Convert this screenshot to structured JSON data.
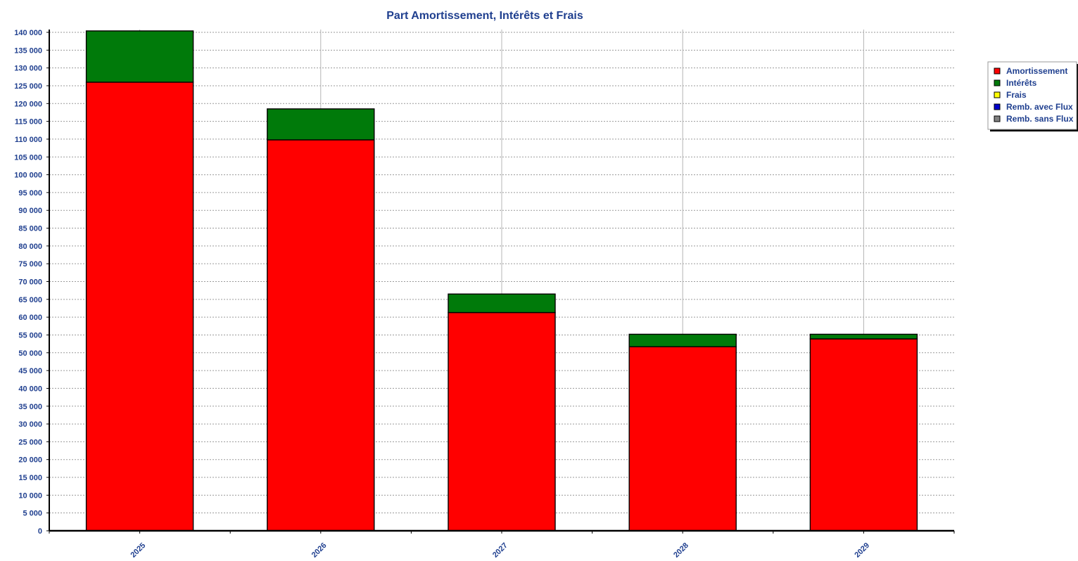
{
  "chart_data": {
    "type": "bar",
    "stacked": true,
    "title": "Part Amortissement, Intérêts et Frais",
    "xlabel": "",
    "ylabel": "",
    "categories": [
      "2025",
      "2026",
      "2027",
      "2028",
      "2029"
    ],
    "series": [
      {
        "name": "Amortissement",
        "color": "#ff0000",
        "values": [
          126000,
          109800,
          61300,
          51700,
          53900
        ]
      },
      {
        "name": "Intérêts",
        "color": "#007a0a",
        "values": [
          14400,
          8700,
          5200,
          3500,
          1300
        ]
      },
      {
        "name": "Frais",
        "color": "#ffff00",
        "values": [
          0,
          0,
          0,
          0,
          0
        ]
      },
      {
        "name": "Remb. avec Flux",
        "color": "#0000cc",
        "values": [
          0,
          0,
          0,
          0,
          0
        ]
      },
      {
        "name": "Remb. sans Flux",
        "color": "#808080",
        "values": [
          0,
          0,
          0,
          0,
          0
        ]
      }
    ],
    "ylim": [
      0,
      140000
    ],
    "yticks": [
      0,
      5000,
      10000,
      15000,
      20000,
      25000,
      30000,
      35000,
      40000,
      45000,
      50000,
      55000,
      60000,
      65000,
      70000,
      75000,
      80000,
      85000,
      90000,
      95000,
      100000,
      105000,
      110000,
      115000,
      120000,
      125000,
      130000,
      135000,
      140000
    ],
    "ytick_labels": [
      "0",
      "5 000",
      "10 000",
      "15 000",
      "20 000",
      "25 000",
      "30 000",
      "35 000",
      "40 000",
      "45 000",
      "50 000",
      "55 000",
      "60 000",
      "65 000",
      "70 000",
      "75 000",
      "80 000",
      "85 000",
      "90 000",
      "95 000",
      "100 000",
      "105 000",
      "110 000",
      "115 000",
      "120 000",
      "125 000",
      "130 000",
      "135 000",
      "140 000"
    ],
    "grid": true,
    "legend_position": "top-right"
  }
}
